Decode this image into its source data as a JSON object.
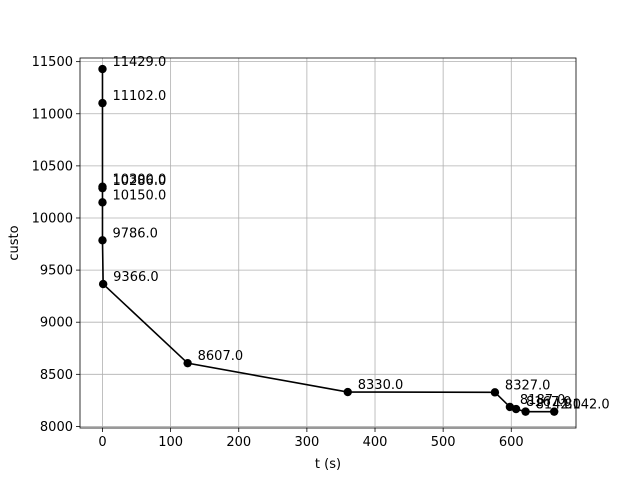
{
  "chart_data": {
    "type": "line",
    "title": "",
    "xlabel": "t (s)",
    "ylabel": "custo",
    "xlim": [
      -33,
      695
    ],
    "ylim": [
      7985,
      11535
    ],
    "xticks": [
      0,
      100,
      200,
      300,
      400,
      500,
      600
    ],
    "xtick_labels": [
      "0",
      "100",
      "200",
      "300",
      "400",
      "500",
      "600"
    ],
    "yticks": [
      8000,
      8500,
      9000,
      9500,
      10000,
      10500,
      11000,
      11500
    ],
    "ytick_labels": [
      "8000",
      "8500",
      "9000",
      "9500",
      "10000",
      "10500",
      "11000",
      "11500"
    ],
    "grid": true,
    "line_color": "#000000",
    "marker": "circle",
    "series": [
      {
        "x": [
          0,
          0,
          0,
          0,
          0,
          0,
          1,
          125,
          360,
          576,
          598,
          607,
          621,
          663
        ],
        "y": [
          11429,
          11102,
          10300,
          10286,
          10150,
          9786,
          9366,
          8607,
          8330,
          8327,
          8187,
          8167,
          8142,
          8142
        ],
        "labels": [
          "11429.0",
          "11102.0",
          "10300.0",
          "10286.0",
          "10150.0",
          "9786.0",
          "9366.0",
          "8607.0",
          "8330.0",
          "8327.0",
          "8187.0",
          "8167.0",
          "8142.0",
          "8142.0"
        ]
      }
    ]
  }
}
